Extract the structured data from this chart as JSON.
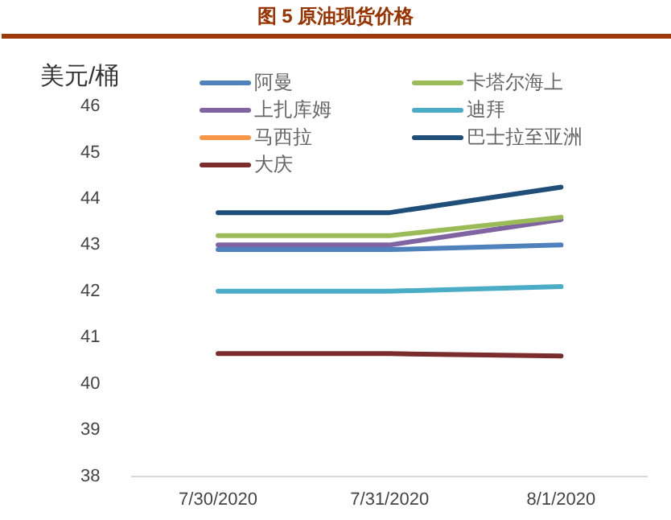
{
  "chart_data": {
    "type": "line",
    "title": "图 5 原油现货价格",
    "ylabel": "美元/桶",
    "categories": [
      "7/30/2020",
      "7/31/2020",
      "8/1/2020"
    ],
    "series": [
      {
        "name": "阿曼",
        "color": "#4f81bd",
        "values": [
          42.9,
          42.9,
          43.0
        ]
      },
      {
        "name": "卡塔尔海上",
        "color": "#9bbb59",
        "values": [
          43.2,
          43.2,
          43.6
        ]
      },
      {
        "name": "上扎库姆",
        "color": "#8064a2",
        "values": [
          43.0,
          43.0,
          43.55
        ]
      },
      {
        "name": "迪拜",
        "color": "#4bacc6",
        "values": [
          42.0,
          42.0,
          42.1
        ]
      },
      {
        "name": "马西拉",
        "color": "#f79646",
        "values": [
          null,
          null,
          null
        ]
      },
      {
        "name": "巴士拉至亚洲",
        "color": "#1f4e79",
        "values": [
          43.7,
          43.7,
          44.25
        ]
      },
      {
        "name": "大庆",
        "color": "#7b2c2c",
        "values": [
          40.65,
          40.65,
          40.6
        ]
      }
    ],
    "ylim": [
      38,
      46
    ],
    "yticks": [
      38,
      39,
      40,
      41,
      42,
      43,
      44,
      45,
      46
    ],
    "grid": false,
    "legend": "top",
    "marker": "none",
    "line_style": "solid"
  }
}
